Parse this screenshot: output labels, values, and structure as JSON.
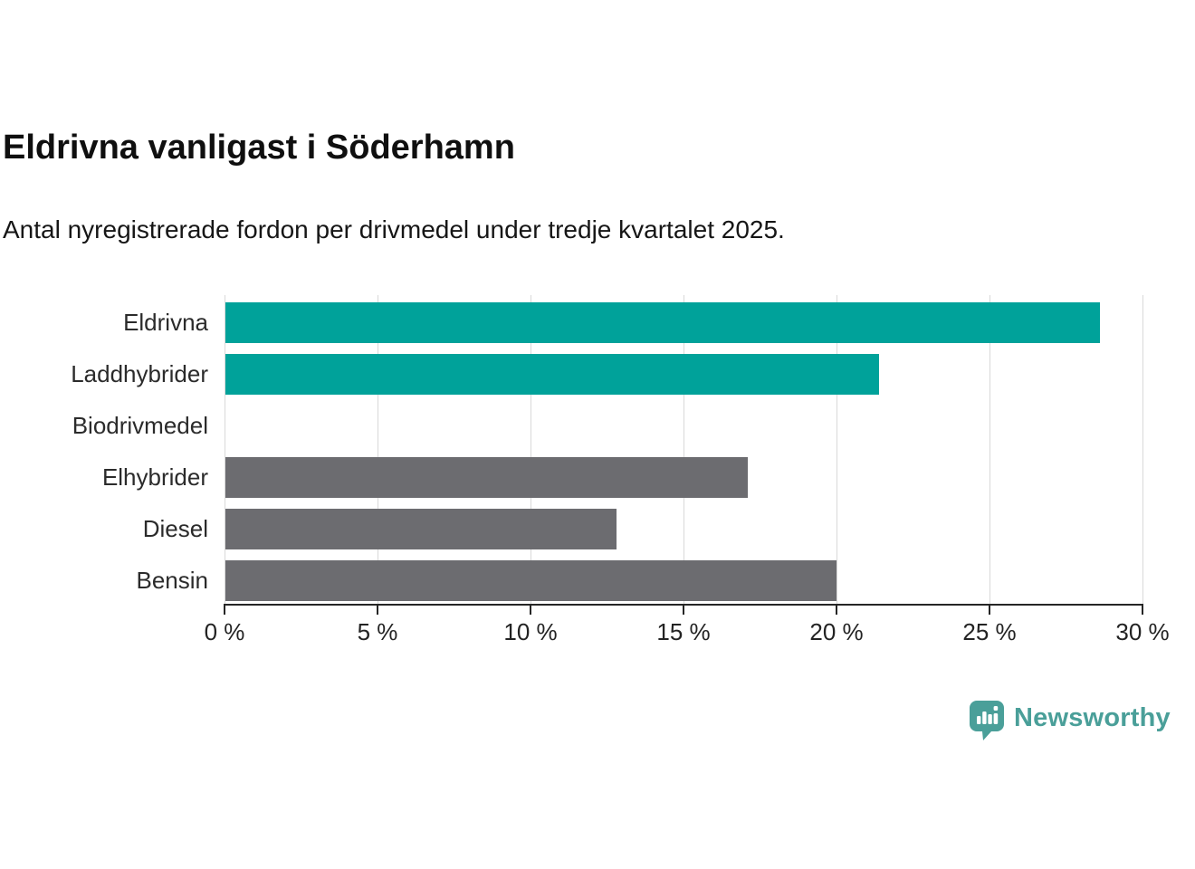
{
  "chart_data": {
    "type": "bar",
    "orientation": "horizontal",
    "title": "Eldrivna vanligast i Söderhamn",
    "subtitle": "Antal nyregistrerade fordon per drivmedel under tredje kvartalet 2025.",
    "categories": [
      "Eldrivna",
      "Laddhybrider",
      "Biodrivmedel",
      "Elhybrider",
      "Diesel",
      "Bensin"
    ],
    "values": [
      28.6,
      21.4,
      0,
      17.1,
      12.8,
      20.0
    ],
    "bar_colors": [
      "#00a29a",
      "#00a29a",
      "#6c6c70",
      "#6c6c70",
      "#6c6c70",
      "#6c6c70"
    ],
    "xlabel": "",
    "ylabel": "",
    "xlim": [
      0,
      30
    ],
    "x_ticks": [
      0,
      5,
      10,
      15,
      20,
      25,
      30
    ],
    "x_tick_labels": [
      "0 %",
      "5 %",
      "10 %",
      "15 %",
      "20 %",
      "25 %",
      "30 %"
    ],
    "grid": true,
    "legend": "none"
  },
  "style": {
    "accent_teal": "#00a29a",
    "bar_gray": "#6c6c70",
    "gridline_color": "#d9d9d9",
    "axis_color": "#262626",
    "text_color": "#161616",
    "logo_teal": "#4a9f99",
    "background": "#ffffff"
  },
  "footer": {
    "brand": "Newsworthy",
    "logo_icon": "speech-bubble-with-bar-chart-and-exclamation"
  }
}
